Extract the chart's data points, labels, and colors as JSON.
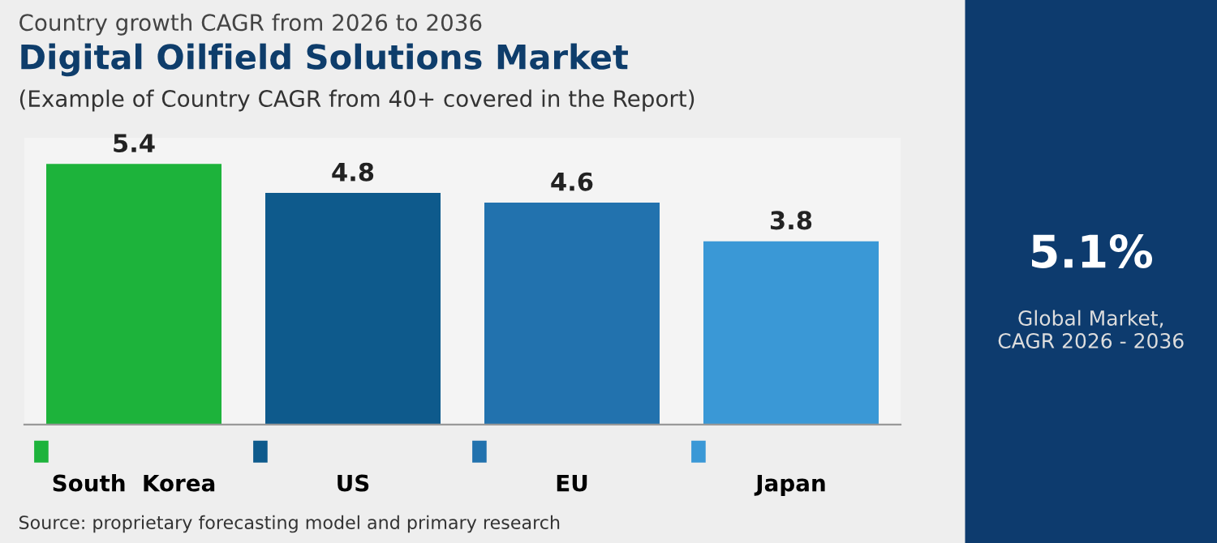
{
  "chart_data": [
    {
      "type": "bar",
      "title": "Digital Oilfield Solutions Market",
      "subtitle": "(Example of Country CAGR from 40+ covered in the Report)",
      "annotations": [
        "Country growth CAGR from 2026 to 2036",
        "Source: proprietary forecasting model and primary research"
      ],
      "categories": [
        "South  Korea",
        "US",
        "EU",
        "Japan"
      ],
      "values": [
        5.4,
        4.8,
        4.6,
        3.8
      ],
      "colors": [
        "#1db33b",
        "#0e5a8c",
        "#2272ae",
        "#3a98d6"
      ],
      "data_labels": true,
      "grid": false
    },
    {
      "type": "other",
      "annotations": [
        "5.1%",
        "Global Market,\nCAGR 2026 - 2036"
      ]
    }
  ]
}
